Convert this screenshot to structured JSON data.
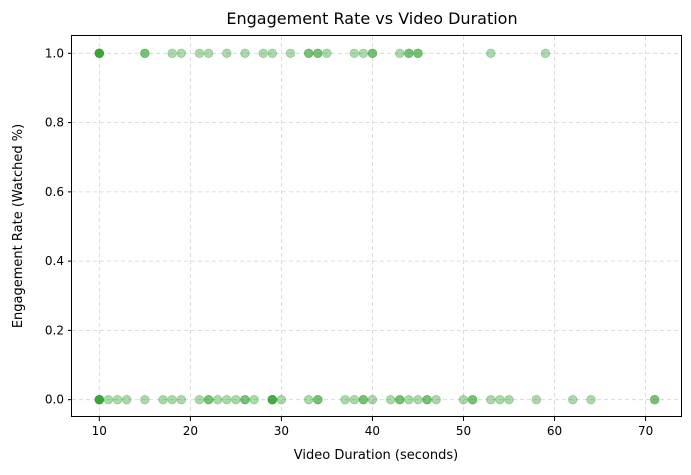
{
  "chart_data": {
    "type": "scatter",
    "title": "Engagement Rate vs Video Duration",
    "xlabel": "Video Duration (seconds)",
    "ylabel": "Engagement Rate (Watched %)",
    "xlim": [
      7,
      74
    ],
    "ylim": [
      -0.05,
      1.05
    ],
    "x_ticks": [
      10,
      20,
      30,
      40,
      50,
      60,
      70
    ],
    "x_tick_labels": [
      "10",
      "20",
      "30",
      "40",
      "50",
      "60",
      "70"
    ],
    "y_ticks": [
      0.0,
      0.2,
      0.4,
      0.6,
      0.8,
      1.0
    ],
    "y_tick_labels": [
      "0.0",
      "0.2",
      "0.4",
      "0.6",
      "0.8",
      "1.0"
    ],
    "grid": true,
    "marker_color": "#2ca02c",
    "marker_alpha": 0.4,
    "series": [
      {
        "points": [
          {
            "x": 10,
            "y": 1
          },
          {
            "x": 10,
            "y": 1
          },
          {
            "x": 10,
            "y": 1
          },
          {
            "x": 10,
            "y": 1
          },
          {
            "x": 10,
            "y": 1
          },
          {
            "x": 15,
            "y": 1
          },
          {
            "x": 15,
            "y": 1
          },
          {
            "x": 18,
            "y": 1
          },
          {
            "x": 19,
            "y": 1
          },
          {
            "x": 21,
            "y": 1
          },
          {
            "x": 22,
            "y": 1
          },
          {
            "x": 24,
            "y": 1
          },
          {
            "x": 26,
            "y": 1
          },
          {
            "x": 28,
            "y": 1
          },
          {
            "x": 29,
            "y": 1
          },
          {
            "x": 31,
            "y": 1
          },
          {
            "x": 33,
            "y": 1
          },
          {
            "x": 33,
            "y": 1
          },
          {
            "x": 34,
            "y": 1
          },
          {
            "x": 34,
            "y": 1
          },
          {
            "x": 35,
            "y": 1
          },
          {
            "x": 38,
            "y": 1
          },
          {
            "x": 39,
            "y": 1
          },
          {
            "x": 40,
            "y": 1
          },
          {
            "x": 40,
            "y": 1
          },
          {
            "x": 43,
            "y": 1
          },
          {
            "x": 44,
            "y": 1
          },
          {
            "x": 44,
            "y": 1
          },
          {
            "x": 45,
            "y": 1
          },
          {
            "x": 45,
            "y": 1
          },
          {
            "x": 53,
            "y": 1
          },
          {
            "x": 59,
            "y": 1
          },
          {
            "x": 10,
            "y": 0
          },
          {
            "x": 10,
            "y": 0
          },
          {
            "x": 10,
            "y": 0
          },
          {
            "x": 10,
            "y": 0
          },
          {
            "x": 10,
            "y": 0
          },
          {
            "x": 11,
            "y": 0
          },
          {
            "x": 12,
            "y": 0
          },
          {
            "x": 13,
            "y": 0
          },
          {
            "x": 15,
            "y": 0
          },
          {
            "x": 17,
            "y": 0
          },
          {
            "x": 18,
            "y": 0
          },
          {
            "x": 19,
            "y": 0
          },
          {
            "x": 21,
            "y": 0
          },
          {
            "x": 22,
            "y": 0
          },
          {
            "x": 22,
            "y": 0
          },
          {
            "x": 23,
            "y": 0
          },
          {
            "x": 24,
            "y": 0
          },
          {
            "x": 25,
            "y": 0
          },
          {
            "x": 26,
            "y": 0
          },
          {
            "x": 26,
            "y": 0
          },
          {
            "x": 27,
            "y": 0
          },
          {
            "x": 29,
            "y": 0
          },
          {
            "x": 29,
            "y": 0
          },
          {
            "x": 29,
            "y": 0
          },
          {
            "x": 29,
            "y": 0
          },
          {
            "x": 30,
            "y": 0
          },
          {
            "x": 33,
            "y": 0
          },
          {
            "x": 34,
            "y": 0
          },
          {
            "x": 34,
            "y": 0
          },
          {
            "x": 37,
            "y": 0
          },
          {
            "x": 38,
            "y": 0
          },
          {
            "x": 39,
            "y": 0
          },
          {
            "x": 39,
            "y": 0
          },
          {
            "x": 40,
            "y": 0
          },
          {
            "x": 42,
            "y": 0
          },
          {
            "x": 43,
            "y": 0
          },
          {
            "x": 43,
            "y": 0
          },
          {
            "x": 44,
            "y": 0
          },
          {
            "x": 45,
            "y": 0
          },
          {
            "x": 46,
            "y": 0
          },
          {
            "x": 46,
            "y": 0
          },
          {
            "x": 47,
            "y": 0
          },
          {
            "x": 50,
            "y": 0
          },
          {
            "x": 51,
            "y": 0
          },
          {
            "x": 51,
            "y": 0
          },
          {
            "x": 53,
            "y": 0
          },
          {
            "x": 54,
            "y": 0
          },
          {
            "x": 55,
            "y": 0
          },
          {
            "x": 58,
            "y": 0
          },
          {
            "x": 62,
            "y": 0
          },
          {
            "x": 64,
            "y": 0
          },
          {
            "x": 71,
            "y": 0
          },
          {
            "x": 71,
            "y": 0
          }
        ]
      }
    ]
  }
}
